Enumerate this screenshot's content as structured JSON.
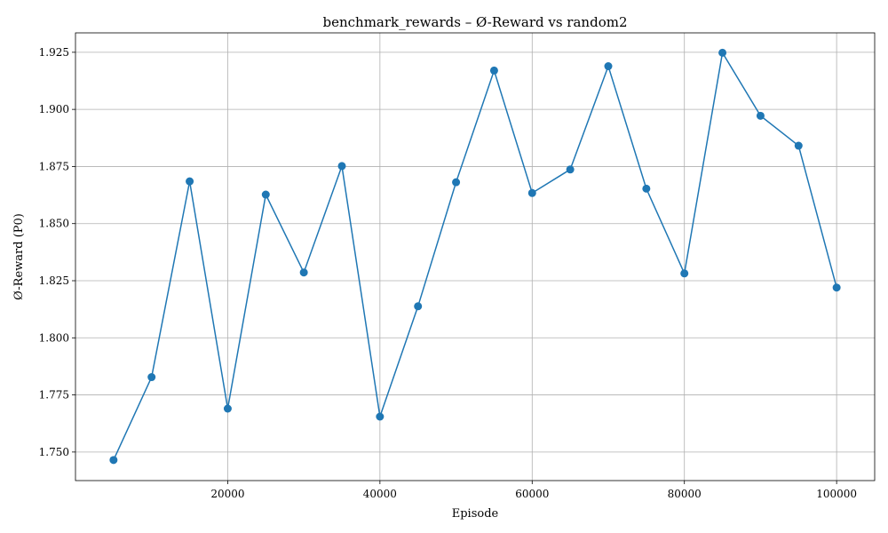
{
  "chart_data": {
    "type": "line",
    "title": "benchmark_rewards – Ø-Reward vs random2",
    "xlabel": "Episode",
    "ylabel": "Ø-Reward (P0)",
    "xlim": [
      0,
      105000
    ],
    "ylim": [
      1.7375,
      1.9335
    ],
    "xticks": [
      20000,
      40000,
      60000,
      80000,
      100000
    ],
    "xtick_labels": [
      "20000",
      "40000",
      "60000",
      "80000",
      "100000"
    ],
    "yticks": [
      1.75,
      1.775,
      1.8,
      1.825,
      1.85,
      1.875,
      1.9,
      1.925
    ],
    "ytick_labels": [
      "1.750",
      "1.775",
      "1.800",
      "1.825",
      "1.850",
      "1.875",
      "1.900",
      "1.925"
    ],
    "grid": true,
    "color": "#1f77b4",
    "series": [
      {
        "x": [
          5000,
          10000,
          15000,
          20000,
          25000,
          30000,
          35000,
          40000,
          45000,
          50000,
          55000,
          60000,
          65000,
          70000,
          75000,
          80000,
          85000,
          90000,
          95000,
          100000
        ],
        "values": [
          1.7465,
          1.7828,
          1.8685,
          1.769,
          1.8627,
          1.8286,
          1.8752,
          1.7655,
          1.8138,
          1.8681,
          1.917,
          1.8634,
          1.8737,
          1.9189,
          1.8653,
          1.8282,
          1.9248,
          1.8972,
          1.8841,
          1.822
        ]
      }
    ]
  }
}
